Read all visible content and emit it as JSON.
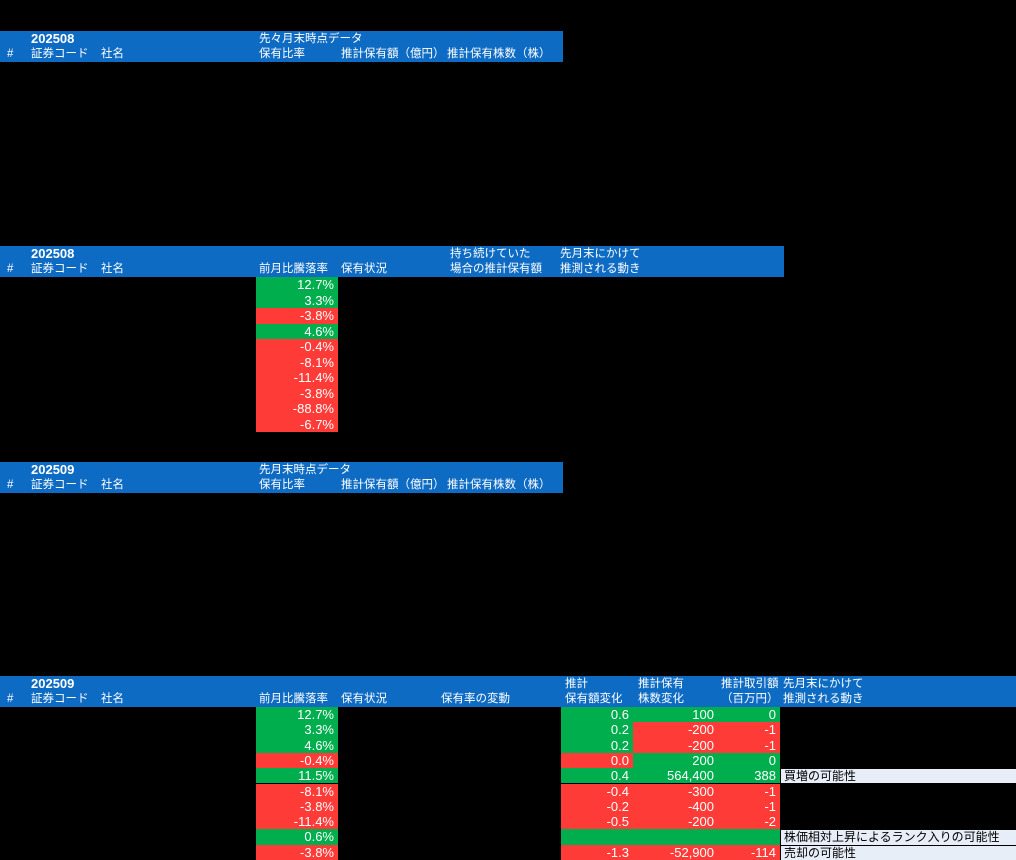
{
  "colors": {
    "background": "#000000",
    "header_blue": "#0e6bc3",
    "positive_green": "#00ae4e",
    "negative_red": "#ff3b38",
    "label_bg": "#e8eef8",
    "header_text": "#ffffff",
    "cell_text": "#ffffff",
    "label_text": "#000000"
  },
  "sections": {
    "s1": {
      "period": "202508",
      "group": "先々月末時点データ",
      "cols": {
        "num": "#",
        "code": "証券コード",
        "name": "社名",
        "ratio": "保有比率",
        "amount": "推計保有額（億円）",
        "shares": "推計保有株数（株）"
      }
    },
    "s2": {
      "period": "202508",
      "cols": {
        "num": "#",
        "code": "証券コード",
        "name": "社名",
        "change": "前月比騰落率",
        "status": "保有状況",
        "hold_line1": "持ち続けていた",
        "hold_line2": "場合の推計保有額",
        "move_line1": "先月末にかけて",
        "move_line2": "推測される動き"
      },
      "rows": [
        {
          "change": "12.7%",
          "sign": "pos"
        },
        {
          "change": "3.3%",
          "sign": "pos"
        },
        {
          "change": "-3.8%",
          "sign": "neg"
        },
        {
          "change": "4.6%",
          "sign": "pos"
        },
        {
          "change": "-0.4%",
          "sign": "neg"
        },
        {
          "change": "-8.1%",
          "sign": "neg"
        },
        {
          "change": "-11.4%",
          "sign": "neg"
        },
        {
          "change": "-3.8%",
          "sign": "neg"
        },
        {
          "change": "-88.8%",
          "sign": "neg"
        },
        {
          "change": "-6.7%",
          "sign": "neg"
        }
      ]
    },
    "s3": {
      "period": "202509",
      "group": "先月末時点データ",
      "cols": {
        "num": "#",
        "code": "証券コード",
        "name": "社名",
        "ratio": "保有比率",
        "amount": "推計保有額（億円）",
        "shares": "推計保有株数（株）"
      }
    },
    "s4": {
      "period": "202509",
      "cols": {
        "num": "#",
        "code": "証券コード",
        "name": "社名",
        "change": "前月比騰落率",
        "status": "保有状況",
        "fluct": "保有率の変動",
        "est_line1": "推計",
        "est_line2": "保有額変化",
        "shares_line1": "推計保有",
        "shares_line2": "株数変化",
        "trade_line1": "推計取引額",
        "trade_line2": "（百万円）",
        "move_line1": "先月末にかけて",
        "move_line2": "推測される動き"
      },
      "rows": [
        {
          "change": "12.7%",
          "change_sign": "pos",
          "amount": "0.6",
          "amount_sign": "pos",
          "shares": "100",
          "shares_sign": "pos",
          "trade": "0",
          "trade_sign": "pos",
          "label": ""
        },
        {
          "change": "3.3%",
          "change_sign": "pos",
          "amount": "0.2",
          "amount_sign": "pos",
          "shares": "-200",
          "shares_sign": "neg",
          "trade": "-1",
          "trade_sign": "neg",
          "label": ""
        },
        {
          "change": "4.6%",
          "change_sign": "pos",
          "amount": "0.2",
          "amount_sign": "pos",
          "shares": "-200",
          "shares_sign": "neg",
          "trade": "-1",
          "trade_sign": "neg",
          "label": ""
        },
        {
          "change": "-0.4%",
          "change_sign": "neg",
          "amount": "0.0",
          "amount_sign": "neg",
          "shares": "200",
          "shares_sign": "pos",
          "trade": "0",
          "trade_sign": "pos",
          "label": ""
        },
        {
          "change": "11.5%",
          "change_sign": "pos",
          "amount": "0.4",
          "amount_sign": "pos",
          "shares": "564,400",
          "shares_sign": "pos",
          "trade": "388",
          "trade_sign": "pos",
          "label": "買増の可能性"
        },
        {
          "change": "-8.1%",
          "change_sign": "neg",
          "amount": "-0.4",
          "amount_sign": "neg",
          "shares": "-300",
          "shares_sign": "neg",
          "trade": "-1",
          "trade_sign": "neg",
          "label": ""
        },
        {
          "change": "-3.8%",
          "change_sign": "neg",
          "amount": "-0.2",
          "amount_sign": "neg",
          "shares": "-400",
          "shares_sign": "neg",
          "trade": "-1",
          "trade_sign": "neg",
          "label": ""
        },
        {
          "change": "-11.4%",
          "change_sign": "neg",
          "amount": "-0.5",
          "amount_sign": "neg",
          "shares": "-200",
          "shares_sign": "neg",
          "trade": "-2",
          "trade_sign": "neg",
          "label": ""
        },
        {
          "change": "0.6%",
          "change_sign": "pos",
          "amount": "",
          "amount_sign": "pos",
          "shares": "",
          "shares_sign": "pos",
          "trade": "",
          "trade_sign": "pos",
          "label": "株価相対上昇によるランク入りの可能性"
        },
        {
          "change": "-3.8%",
          "change_sign": "neg",
          "amount": "-1.3",
          "amount_sign": "neg",
          "shares": "-52,900",
          "shares_sign": "neg",
          "trade": "-114",
          "trade_sign": "neg",
          "label": "売却の可能性"
        }
      ]
    }
  }
}
